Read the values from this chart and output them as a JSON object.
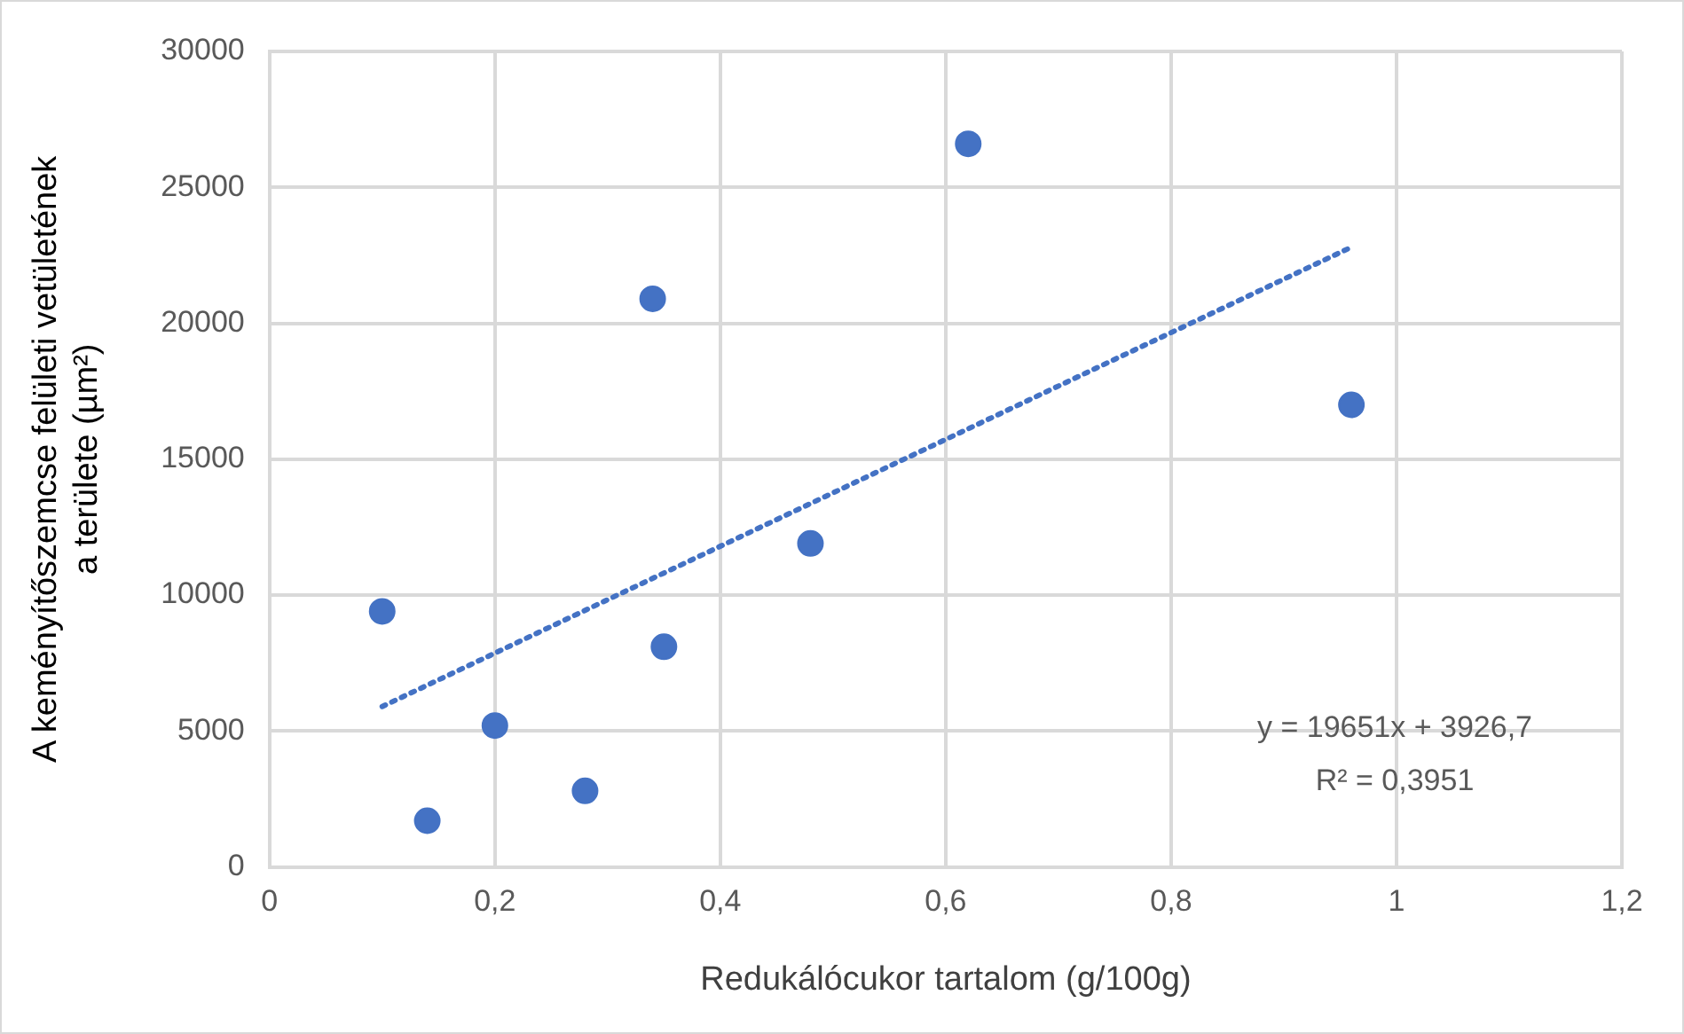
{
  "chart_data": {
    "type": "scatter",
    "xlabel": "Redukálócukor tartalom (g/100g)",
    "ylabel": "A keményítőszemcse felületi vetületének a területe (µm²)",
    "xlim": [
      0,
      1.2
    ],
    "xticks": [
      0,
      {
        "value": 0.2,
        "label": "0,2"
      },
      {
        "value": 0.4,
        "label": "0,4"
      },
      {
        "value": 0.6,
        "label": "0,6"
      },
      {
        "value": 0.8,
        "label": "0,8"
      },
      1,
      {
        "value": 1.2,
        "label": "1,2"
      }
    ],
    "ylim": [
      0,
      30000
    ],
    "yticks": [
      0,
      5000,
      10000,
      15000,
      20000,
      25000,
      30000
    ],
    "grid": true,
    "legend": false,
    "marker": "circle",
    "series": [
      {
        "type": "scatter",
        "color": "#4472c4",
        "x": [
          0.1,
          0.14,
          0.2,
          0.28,
          0.35,
          0.34,
          0.48,
          0.62,
          0.96
        ],
        "values": [
          9400,
          1700,
          5200,
          2800,
          8100,
          20900,
          11900,
          26600,
          17000
        ]
      },
      {
        "type": "line",
        "color": "#4472c4",
        "line_style": "dotted",
        "marker": "none",
        "x": [
          0.1,
          0.96
        ],
        "values": [
          5900,
          22800
        ]
      }
    ],
    "annotations": [
      "y = 19651x + 3926,7",
      "R² = 0,3951"
    ]
  }
}
